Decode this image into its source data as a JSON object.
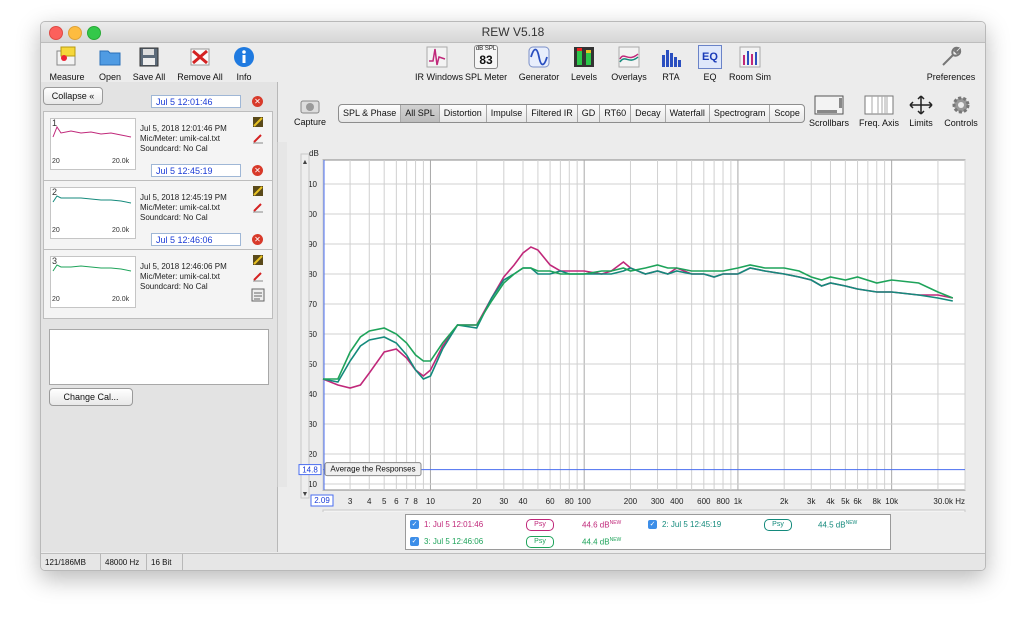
{
  "window": {
    "title": "REW V5.18"
  },
  "toolbar": {
    "left": [
      {
        "label": "Measure",
        "icon": "measure-icon"
      },
      {
        "label": "Open",
        "icon": "folder-icon"
      },
      {
        "label": "Save All",
        "icon": "save-icon"
      },
      {
        "label": "Remove All",
        "icon": "remove-icon"
      },
      {
        "label": "Info",
        "icon": "info-icon"
      }
    ],
    "center": [
      {
        "label": "IR Windows",
        "icon": "ir-windows-icon"
      },
      {
        "label": "SPL Meter",
        "icon": "spl-meter-icon",
        "badge_top": "dB SPL",
        "badge_value": "83"
      },
      {
        "label": "Generator",
        "icon": "generator-icon"
      },
      {
        "label": "Levels",
        "icon": "levels-icon"
      },
      {
        "label": "Overlays",
        "icon": "overlays-icon"
      },
      {
        "label": "RTA",
        "icon": "rta-icon"
      },
      {
        "label": "EQ",
        "icon": "eq-icon",
        "badge_value": "EQ"
      },
      {
        "label": "Room Sim",
        "icon": "room-sim-icon"
      }
    ],
    "preferences": {
      "label": "Preferences",
      "icon": "wrench-icon"
    }
  },
  "left_panel": {
    "collapse_label": "Collapse",
    "measurements": [
      {
        "num": "1",
        "name": "Jul 5 12:01:46",
        "date": "Jul 5, 2018 12:01:46 PM",
        "mic": "Mic/Meter: umik-cal.txt",
        "soundcard": "Soundcard: No Cal",
        "color": "#c0287a",
        "x_lo": "20",
        "x_hi": "20.0k"
      },
      {
        "num": "2",
        "name": "Jul 5 12:45:19",
        "date": "Jul 5, 2018 12:45:19 PM",
        "mic": "Mic/Meter: umik-cal.txt",
        "soundcard": "Soundcard: No Cal",
        "color": "#148a7c",
        "x_lo": "20",
        "x_hi": "20.0k"
      },
      {
        "num": "3",
        "name": "Jul 5 12:46:06",
        "date": "Jul 5, 2018 12:46:06 PM",
        "mic": "Mic/Meter: umik-cal.txt",
        "soundcard": "Soundcard: No Cal",
        "color": "#1ea35a",
        "x_lo": "20",
        "x_hi": "20.0k"
      }
    ],
    "change_cal_label": "Change Cal..."
  },
  "capture": {
    "label": "Capture"
  },
  "tabs": [
    "SPL & Phase",
    "All SPL",
    "Distortion",
    "Impulse",
    "Filtered IR",
    "GD",
    "RT60",
    "Decay",
    "Waterfall",
    "Spectrogram",
    "Scope"
  ],
  "active_tab": "All SPL",
  "right_tools": [
    {
      "label": "Scrollbars",
      "icon": "scrollbars-icon"
    },
    {
      "label": "Freq. Axis",
      "icon": "freq-axis-icon"
    },
    {
      "label": "Limits",
      "icon": "limits-icon"
    },
    {
      "label": "Controls",
      "icon": "gear-icon"
    }
  ],
  "plot": {
    "average_button": "Average the Responses",
    "cursor_y_readout": "14.8",
    "cursor_x_readout": "2.09"
  },
  "chart_data": {
    "type": "line",
    "ylabel": "dB",
    "ylim": [
      8,
      118
    ],
    "xlim": [
      2,
      30000
    ],
    "xscale": "log",
    "y_ticks": [
      10,
      20,
      30,
      40,
      50,
      60,
      70,
      80,
      90,
      100,
      110
    ],
    "x_tick_labels": [
      {
        "v": 3,
        "t": "3"
      },
      {
        "v": 4,
        "t": "4"
      },
      {
        "v": 5,
        "t": "5"
      },
      {
        "v": 6,
        "t": "6"
      },
      {
        "v": 7,
        "t": "7"
      },
      {
        "v": 8,
        "t": "8"
      },
      {
        "v": 10,
        "t": "10"
      },
      {
        "v": 20,
        "t": "20"
      },
      {
        "v": 30,
        "t": "30"
      },
      {
        "v": 40,
        "t": "40"
      },
      {
        "v": 60,
        "t": "60"
      },
      {
        "v": 80,
        "t": "80"
      },
      {
        "v": 100,
        "t": "100"
      },
      {
        "v": 200,
        "t": "200"
      },
      {
        "v": 300,
        "t": "300"
      },
      {
        "v": 400,
        "t": "400"
      },
      {
        "v": 600,
        "t": "600"
      },
      {
        "v": 800,
        "t": "800"
      },
      {
        "v": 1000,
        "t": "1k"
      },
      {
        "v": 2000,
        "t": "2k"
      },
      {
        "v": 3000,
        "t": "3k"
      },
      {
        "v": 4000,
        "t": "4k"
      },
      {
        "v": 5000,
        "t": "5k"
      },
      {
        "v": 6000,
        "t": "6k"
      },
      {
        "v": 8000,
        "t": "8k"
      },
      {
        "v": 10000,
        "t": "10k"
      },
      {
        "v": 30000,
        "t": "30.0k Hz"
      }
    ],
    "series": [
      {
        "color": "#c0287a",
        "x": [
          2,
          2.5,
          3,
          3.5,
          4,
          5,
          6,
          7,
          8,
          9,
          10,
          12,
          15,
          20,
          25,
          30,
          35,
          40,
          45,
          50,
          60,
          70,
          80,
          100,
          130,
          150,
          180,
          200,
          250,
          300,
          350,
          400,
          500,
          600,
          700,
          800,
          1000,
          1200,
          1500,
          2000,
          2500,
          3000,
          3500,
          4000,
          5000,
          6000,
          8000,
          10000,
          15000,
          20000,
          25000
        ],
        "y": [
          45,
          43,
          42,
          43,
          47,
          54,
          55,
          52,
          48,
          46,
          48,
          56,
          63,
          63,
          72,
          79,
          83,
          87,
          89,
          88,
          83,
          81,
          81,
          81,
          80,
          81,
          84,
          82,
          80,
          81,
          80,
          82,
          80,
          80,
          79,
          80,
          80,
          82,
          81,
          80,
          79,
          78,
          76,
          77,
          76,
          75,
          74,
          74,
          73,
          73,
          72
        ]
      },
      {
        "color": "#148a7c",
        "x": [
          2,
          2.5,
          3,
          3.5,
          4,
          5,
          6,
          7,
          8,
          9,
          10,
          12,
          15,
          20,
          25,
          30,
          35,
          40,
          45,
          50,
          60,
          70,
          80,
          100,
          130,
          150,
          180,
          200,
          250,
          300,
          350,
          400,
          500,
          600,
          700,
          800,
          1000,
          1200,
          1500,
          2000,
          2500,
          3000,
          3500,
          4000,
          5000,
          6000,
          8000,
          10000,
          15000,
          20000,
          25000
        ],
        "y": [
          45,
          44,
          51,
          56,
          58,
          59,
          57,
          53,
          48,
          45,
          46,
          55,
          63,
          62,
          72,
          78,
          80,
          82,
          82,
          80,
          80,
          81,
          80,
          80,
          80,
          80,
          81,
          82,
          80,
          81,
          80,
          81,
          80,
          80,
          79,
          80,
          80,
          82,
          81,
          80,
          79,
          78,
          76,
          77,
          76,
          75,
          74,
          74,
          73,
          72,
          71
        ]
      },
      {
        "color": "#1ea35a",
        "x": [
          2,
          2.5,
          3,
          3.5,
          4,
          5,
          6,
          7,
          8,
          9,
          10,
          12,
          15,
          20,
          25,
          30,
          35,
          40,
          45,
          50,
          60,
          70,
          80,
          100,
          130,
          150,
          180,
          200,
          250,
          300,
          350,
          400,
          500,
          600,
          700,
          800,
          1000,
          1200,
          1500,
          2000,
          2500,
          3000,
          3500,
          4000,
          5000,
          6000,
          8000,
          10000,
          15000,
          20000,
          25000
        ],
        "y": [
          45,
          45,
          54,
          59,
          61,
          62,
          60,
          57,
          53,
          51,
          51,
          57,
          63,
          63,
          71,
          77,
          80,
          82,
          82,
          81,
          81,
          80,
          80,
          80,
          81,
          81,
          82,
          81,
          82,
          83,
          82,
          82,
          81,
          81,
          81,
          81,
          82,
          83,
          82,
          82,
          81,
          79,
          78,
          79,
          78,
          79,
          77,
          78,
          77,
          74,
          72
        ]
      }
    ]
  },
  "legend": [
    {
      "label": "1: Jul 5 12:01:46",
      "psy": "Psy",
      "value": "44.6 dB",
      "sup": "NEW",
      "color": "#c0287a"
    },
    {
      "label": "2: Jul 5 12:45:19",
      "psy": "Psy",
      "value": "44.5 dB",
      "sup": "NEW",
      "color": "#148a7c"
    },
    {
      "label": "3: Jul 5 12:46:06",
      "psy": "Psy",
      "value": "44.4 dB",
      "sup": "NEW",
      "color": "#1ea35a"
    }
  ],
  "status": {
    "memory": "121/186MB",
    "rate": "48000 Hz",
    "bits": "16 Bit"
  }
}
